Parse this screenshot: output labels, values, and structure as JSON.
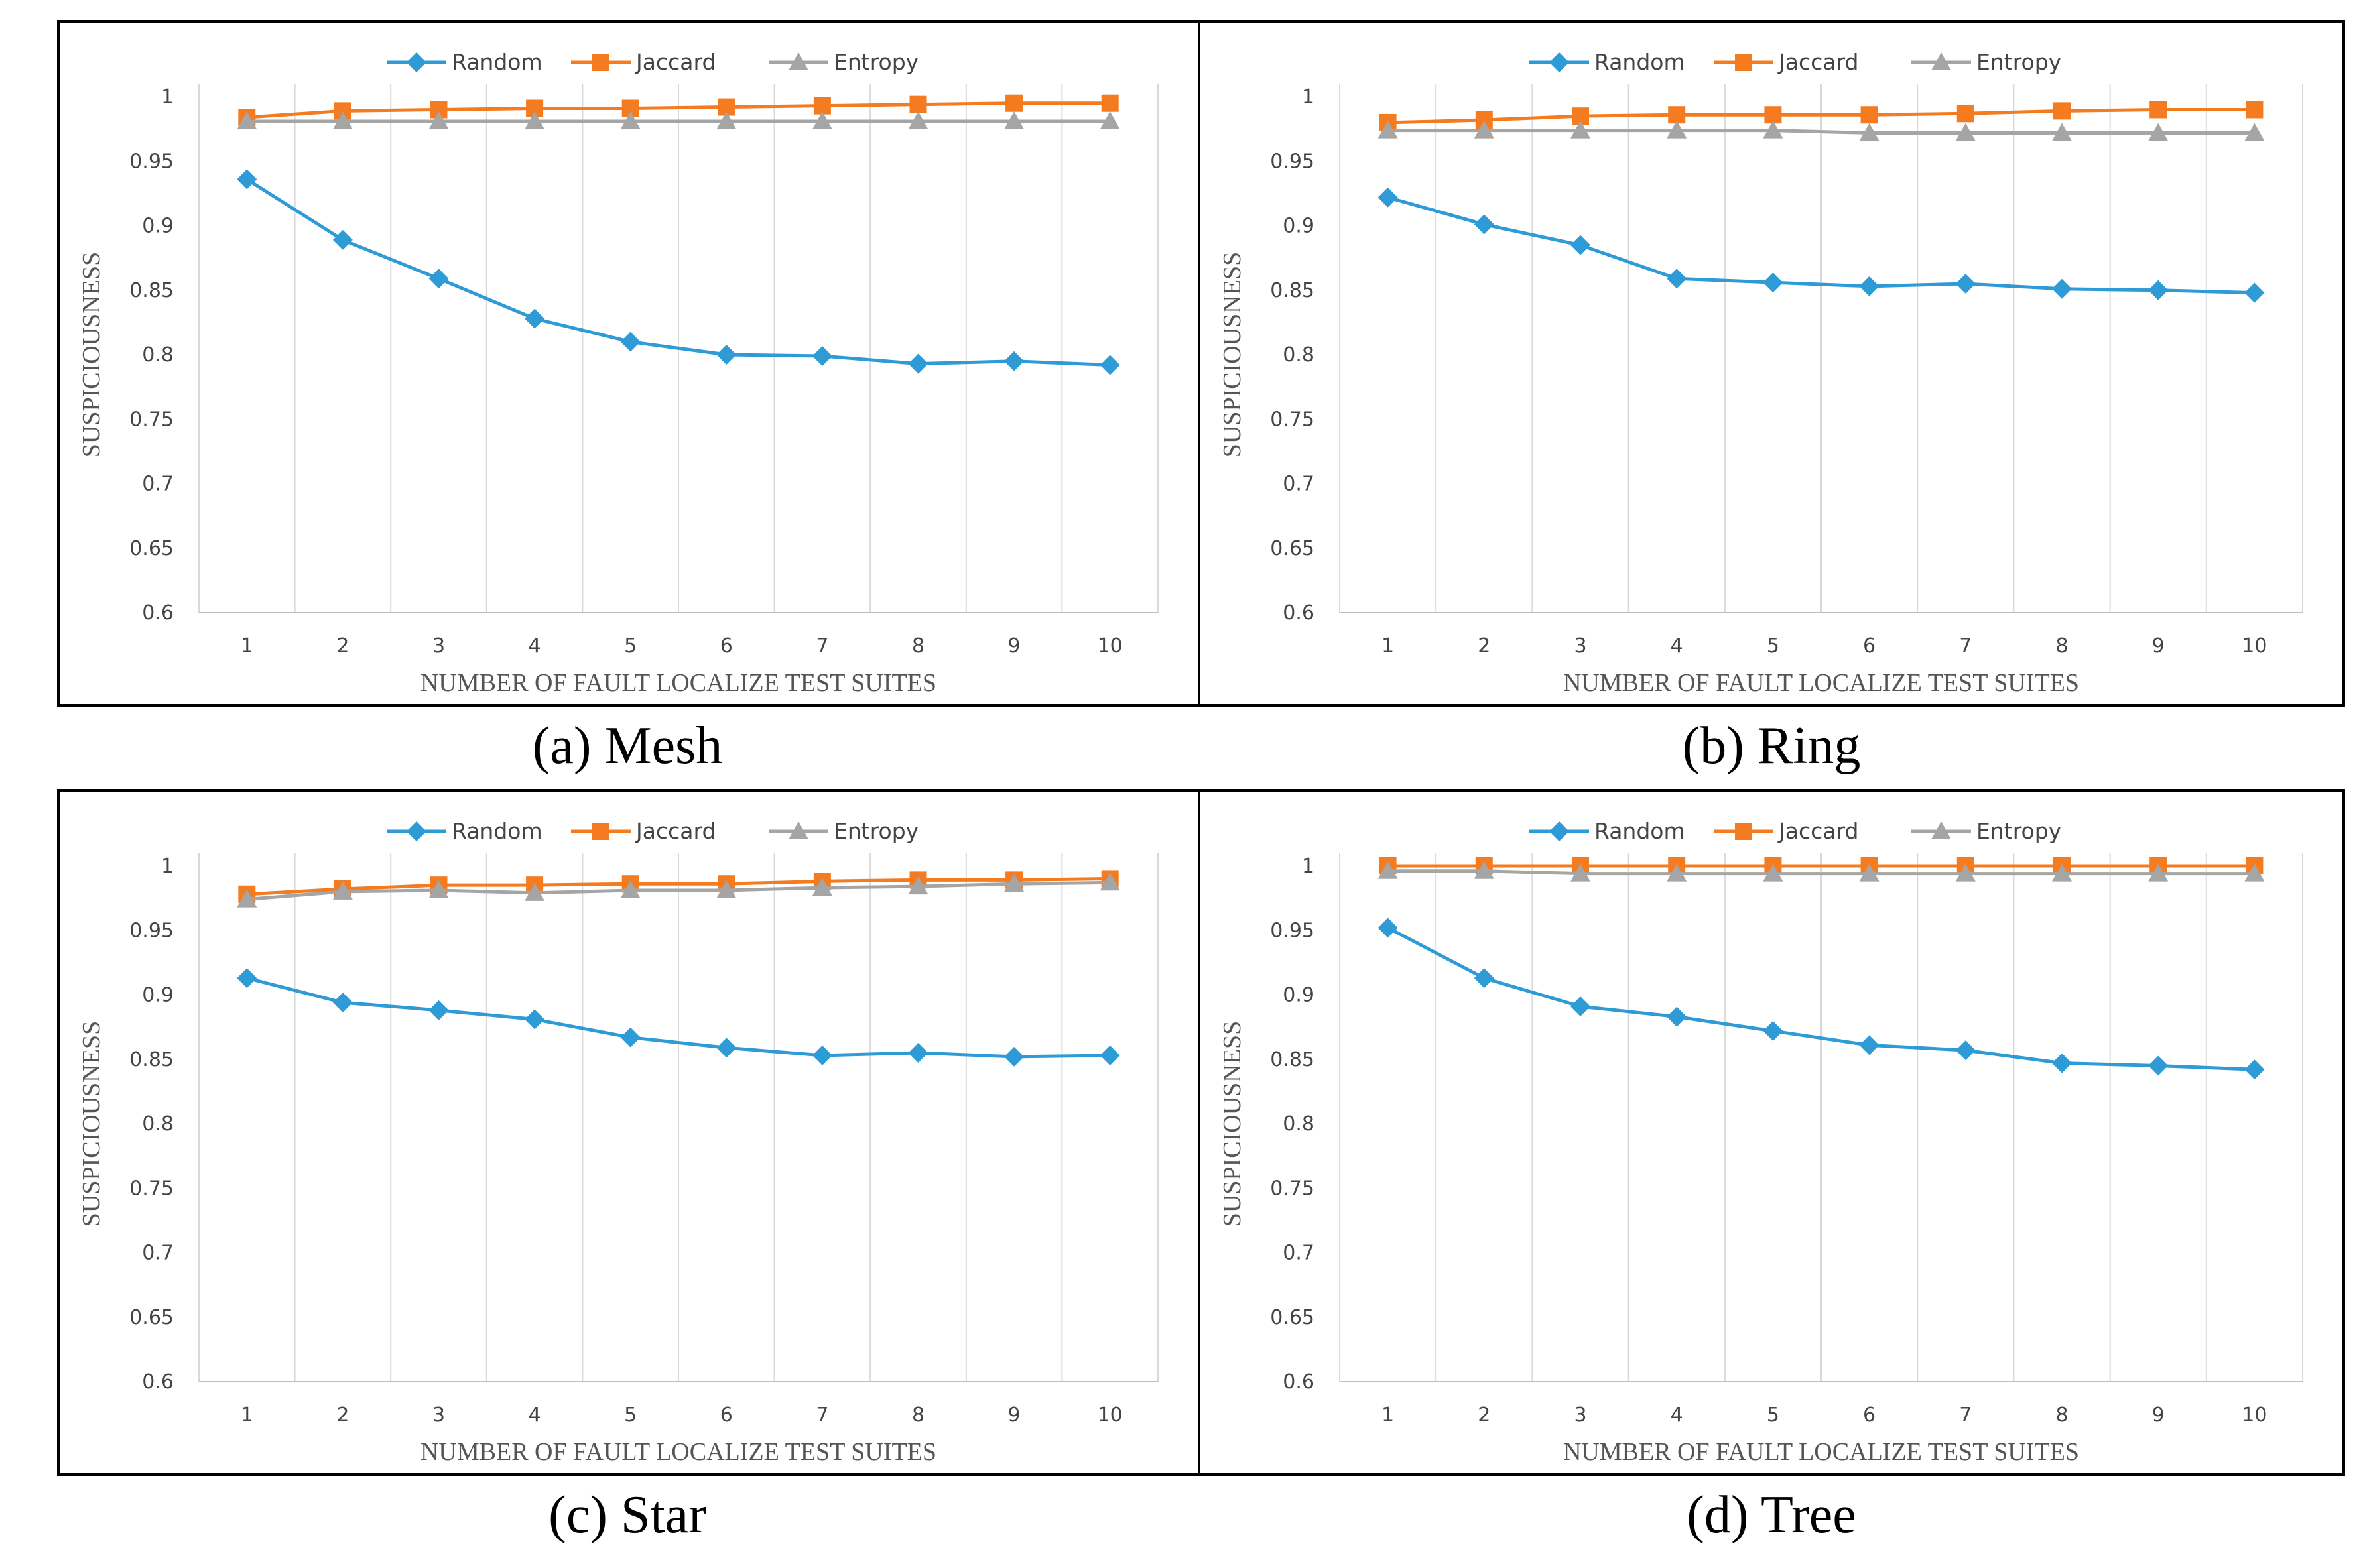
{
  "chart_data": [
    {
      "type": "line",
      "caption": "(a) Mesh",
      "categories": [
        "1",
        "2",
        "3",
        "4",
        "5",
        "6",
        "7",
        "8",
        "9",
        "10"
      ],
      "xlabel": "NUMBER OF FAULT LOCALIZE TEST SUITES",
      "ylabel": "SUSPICIOUSNESS",
      "ylim": [
        0.6,
        1.0
      ],
      "yticks": [
        "0.6",
        "0.65",
        "0.7",
        "0.75",
        "0.8",
        "0.85",
        "0.9",
        "0.95",
        "1"
      ],
      "legend_position": "top-center",
      "grid": "vertical",
      "series": [
        {
          "name": "Random",
          "color": "#2f9bd6",
          "marker": "diamond",
          "values": [
            0.936,
            0.889,
            0.859,
            0.828,
            0.81,
            0.8,
            0.799,
            0.793,
            0.795,
            0.792
          ]
        },
        {
          "name": "Jaccard",
          "color": "#f47b20",
          "marker": "square",
          "values": [
            0.984,
            0.989,
            0.99,
            0.991,
            0.991,
            0.992,
            0.993,
            0.994,
            0.995,
            0.995
          ]
        },
        {
          "name": "Entropy",
          "color": "#a5a5a5",
          "marker": "triangle",
          "values": [
            0.981,
            0.981,
            0.981,
            0.981,
            0.981,
            0.981,
            0.981,
            0.981,
            0.981,
            0.981
          ]
        }
      ]
    },
    {
      "type": "line",
      "caption": "(b) Ring",
      "categories": [
        "1",
        "2",
        "3",
        "4",
        "5",
        "6",
        "7",
        "8",
        "9",
        "10"
      ],
      "xlabel": "NUMBER OF FAULT LOCALIZE TEST SUITES",
      "ylabel": "SUSPICIOUSNESS",
      "ylim": [
        0.6,
        1.0
      ],
      "yticks": [
        "0.6",
        "0.65",
        "0.7",
        "0.75",
        "0.8",
        "0.85",
        "0.9",
        "0.95",
        "1"
      ],
      "legend_position": "top-center",
      "grid": "vertical",
      "series": [
        {
          "name": "Random",
          "color": "#2f9bd6",
          "marker": "diamond",
          "values": [
            0.922,
            0.901,
            0.885,
            0.859,
            0.856,
            0.853,
            0.855,
            0.851,
            0.85,
            0.848
          ]
        },
        {
          "name": "Jaccard",
          "color": "#f47b20",
          "marker": "square",
          "values": [
            0.98,
            0.982,
            0.985,
            0.986,
            0.986,
            0.986,
            0.987,
            0.989,
            0.99,
            0.99
          ]
        },
        {
          "name": "Entropy",
          "color": "#a5a5a5",
          "marker": "triangle",
          "values": [
            0.974,
            0.974,
            0.974,
            0.974,
            0.974,
            0.972,
            0.972,
            0.972,
            0.972,
            0.972
          ]
        }
      ]
    },
    {
      "type": "line",
      "caption": "(c) Star",
      "categories": [
        "1",
        "2",
        "3",
        "4",
        "5",
        "6",
        "7",
        "8",
        "9",
        "10"
      ],
      "xlabel": "NUMBER OF FAULT LOCALIZE TEST SUITES",
      "ylabel": "SUSPICIOUSNESS",
      "ylim": [
        0.6,
        1.0
      ],
      "yticks": [
        "0.6",
        "0.65",
        "0.7",
        "0.75",
        "0.8",
        "0.85",
        "0.9",
        "0.95",
        "1"
      ],
      "legend_position": "top-center",
      "grid": "vertical",
      "series": [
        {
          "name": "Random",
          "color": "#2f9bd6",
          "marker": "diamond",
          "values": [
            0.913,
            0.894,
            0.888,
            0.881,
            0.867,
            0.859,
            0.853,
            0.855,
            0.852,
            0.853
          ]
        },
        {
          "name": "Jaccard",
          "color": "#f47b20",
          "marker": "square",
          "values": [
            0.978,
            0.982,
            0.985,
            0.985,
            0.986,
            0.986,
            0.988,
            0.989,
            0.989,
            0.99
          ]
        },
        {
          "name": "Entropy",
          "color": "#a5a5a5",
          "marker": "triangle",
          "values": [
            0.974,
            0.98,
            0.981,
            0.979,
            0.981,
            0.981,
            0.983,
            0.984,
            0.986,
            0.987
          ]
        }
      ]
    },
    {
      "type": "line",
      "caption": "(d) Tree",
      "categories": [
        "1",
        "2",
        "3",
        "4",
        "5",
        "6",
        "7",
        "8",
        "9",
        "10"
      ],
      "xlabel": "NUMBER OF FAULT LOCALIZE TEST SUITES",
      "ylabel": "SUSPICIOUSNESS",
      "ylim": [
        0.6,
        1.0
      ],
      "yticks": [
        "0.6",
        "0.65",
        "0.7",
        "0.75",
        "0.8",
        "0.85",
        "0.9",
        "0.95",
        "1"
      ],
      "legend_position": "top-center",
      "grid": "vertical",
      "series": [
        {
          "name": "Random",
          "color": "#2f9bd6",
          "marker": "diamond",
          "values": [
            0.952,
            0.913,
            0.891,
            0.883,
            0.872,
            0.861,
            0.857,
            0.847,
            0.845,
            0.842
          ]
        },
        {
          "name": "Jaccard",
          "color": "#f47b20",
          "marker": "square",
          "values": [
            1.0,
            1.0,
            1.0,
            1.0,
            1.0,
            1.0,
            1.0,
            1.0,
            1.0,
            1.0
          ]
        },
        {
          "name": "Entropy",
          "color": "#a5a5a5",
          "marker": "triangle",
          "values": [
            0.996,
            0.996,
            0.994,
            0.994,
            0.994,
            0.994,
            0.994,
            0.994,
            0.994,
            0.994
          ]
        }
      ]
    }
  ]
}
